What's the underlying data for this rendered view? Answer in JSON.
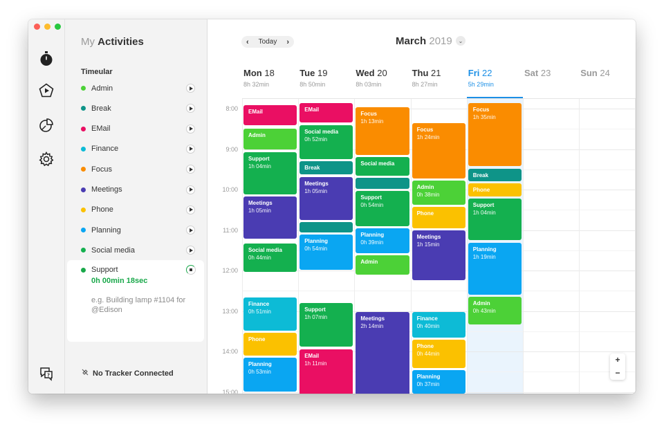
{
  "sidebar": {
    "title_light": "My",
    "title_bold": "Activities",
    "list_header": "Timeular",
    "activities": [
      {
        "label": "Admin",
        "color": "#4cd137"
      },
      {
        "label": "Break",
        "color": "#0e9488"
      },
      {
        "label": "EMail",
        "color": "#ea0f63"
      },
      {
        "label": "Finance",
        "color": "#0dbbd6"
      },
      {
        "label": "Focus",
        "color": "#fa8c00"
      },
      {
        "label": "Meetings",
        "color": "#4a3cb2"
      },
      {
        "label": "Phone",
        "color": "#fbc100"
      },
      {
        "label": "Planning",
        "color": "#0aa6f2"
      },
      {
        "label": "Social media",
        "color": "#14b04f"
      }
    ],
    "active": {
      "label": "Support",
      "time": "0h 00min 18sec",
      "note_placeholder": "e.g. Building lamp #1104 for @Edison"
    },
    "tracker_status": "No Tracker Connected"
  },
  "rail": {
    "icons": [
      "timer-icon",
      "activities-icon",
      "reports-icon",
      "settings-icon",
      "help-icon"
    ]
  },
  "calendar": {
    "nav": {
      "prev": "‹",
      "today": "Today",
      "next": "›"
    },
    "month": "March",
    "year": "2019",
    "days": [
      {
        "name": "Mon",
        "date": "18",
        "total": "8h 32min"
      },
      {
        "name": "Tue",
        "date": "19",
        "total": "8h 50min"
      },
      {
        "name": "Wed",
        "date": "20",
        "total": "8h 03min"
      },
      {
        "name": "Thu",
        "date": "21",
        "total": "8h 27min"
      },
      {
        "name": "Fri",
        "date": "22",
        "total": "5h 29min"
      },
      {
        "name": "Sat",
        "date": "23",
        "total": ""
      },
      {
        "name": "Sun",
        "date": "24",
        "total": ""
      }
    ],
    "hours": [
      "8:00",
      "9:00",
      "10:00",
      "11:00",
      "12:00",
      "13:00",
      "14:00",
      "15:00"
    ],
    "zoom_in": "+",
    "zoom_out": "−",
    "events": [
      {
        "day": 0,
        "start": "07:55",
        "end": "08:27",
        "title": "EMail",
        "dur": "",
        "color": "#ea0f63"
      },
      {
        "day": 0,
        "start": "08:30",
        "end": "09:03",
        "title": "Admin",
        "dur": "",
        "color": "#4cd137"
      },
      {
        "day": 0,
        "start": "09:05",
        "end": "10:09",
        "title": "Support",
        "dur": "1h 04min",
        "color": "#14b04f"
      },
      {
        "day": 0,
        "start": "10:10",
        "end": "11:15",
        "title": "Meetings",
        "dur": "1h 05min",
        "color": "#4a3cb2"
      },
      {
        "day": 0,
        "start": "11:20",
        "end": "12:04",
        "title": "Social media",
        "dur": "0h 44min",
        "color": "#14b04f"
      },
      {
        "day": 0,
        "start": "12:40",
        "end": "13:31",
        "title": "Finance",
        "dur": "0h 51min",
        "color": "#0dbbd6"
      },
      {
        "day": 0,
        "start": "13:32",
        "end": "14:08",
        "title": "Phone",
        "dur": "",
        "color": "#fbc100"
      },
      {
        "day": 0,
        "start": "14:09",
        "end": "15:02",
        "title": "Planning",
        "dur": "0h 53min",
        "color": "#0aa6f2"
      },
      {
        "day": 1,
        "start": "07:52",
        "end": "08:23",
        "title": "EMail",
        "dur": "",
        "color": "#ea0f63"
      },
      {
        "day": 1,
        "start": "08:25",
        "end": "09:17",
        "title": "Social media",
        "dur": "0h 52min",
        "color": "#14b04f"
      },
      {
        "day": 1,
        "start": "09:18",
        "end": "09:40",
        "title": "Break",
        "dur": "",
        "color": "#0e9488"
      },
      {
        "day": 1,
        "start": "09:42",
        "end": "10:47",
        "title": "Meetings",
        "dur": "1h 05min",
        "color": "#4a3cb2"
      },
      {
        "day": 1,
        "start": "10:48",
        "end": "11:06",
        "title": "",
        "dur": "",
        "color": "#0e9488"
      },
      {
        "day": 1,
        "start": "11:07",
        "end": "12:01",
        "title": "Planning",
        "dur": "0h 54min",
        "color": "#0aa6f2"
      },
      {
        "day": 1,
        "start": "12:48",
        "end": "13:55",
        "title": "Support",
        "dur": "1h 07min",
        "color": "#14b04f"
      },
      {
        "day": 1,
        "start": "13:57",
        "end": "15:08",
        "title": "EMail",
        "dur": "1h 11min",
        "color": "#ea0f63"
      },
      {
        "day": 2,
        "start": "07:58",
        "end": "09:11",
        "title": "Focus",
        "dur": "1h 13min",
        "color": "#fa8c00"
      },
      {
        "day": 2,
        "start": "09:12",
        "end": "09:42",
        "title": "Social media",
        "dur": "",
        "color": "#14b04f"
      },
      {
        "day": 2,
        "start": "09:43",
        "end": "10:01",
        "title": "",
        "dur": "",
        "color": "#0e9488"
      },
      {
        "day": 2,
        "start": "10:02",
        "end": "10:56",
        "title": "Support",
        "dur": "0h 54min",
        "color": "#14b04f"
      },
      {
        "day": 2,
        "start": "10:57",
        "end": "11:36",
        "title": "Planning",
        "dur": "0h 39min",
        "color": "#0aa6f2"
      },
      {
        "day": 2,
        "start": "11:37",
        "end": "12:08",
        "title": "Admin",
        "dur": "",
        "color": "#4cd137"
      },
      {
        "day": 2,
        "start": "13:02",
        "end": "15:16",
        "title": "Meetings",
        "dur": "2h 14min",
        "color": "#4a3cb2"
      },
      {
        "day": 3,
        "start": "08:22",
        "end": "09:46",
        "title": "Focus",
        "dur": "1h 24min",
        "color": "#fa8c00"
      },
      {
        "day": 3,
        "start": "09:47",
        "end": "10:25",
        "title": "Admin",
        "dur": "0h 38min",
        "color": "#4cd137"
      },
      {
        "day": 3,
        "start": "10:26",
        "end": "11:00",
        "title": "Phone",
        "dur": "",
        "color": "#fbc100"
      },
      {
        "day": 3,
        "start": "11:01",
        "end": "12:16",
        "title": "Meetings",
        "dur": "1h 15min",
        "color": "#4a3cb2"
      },
      {
        "day": 3,
        "start": "13:02",
        "end": "13:42",
        "title": "Finance",
        "dur": "0h 40min",
        "color": "#0dbbd6"
      },
      {
        "day": 3,
        "start": "13:43",
        "end": "14:27",
        "title": "Phone",
        "dur": "0h 44min",
        "color": "#fbc100"
      },
      {
        "day": 3,
        "start": "14:28",
        "end": "15:05",
        "title": "Planning",
        "dur": "0h 37min",
        "color": "#0aa6f2"
      },
      {
        "day": 4,
        "start": "07:52",
        "end": "09:27",
        "title": "Focus",
        "dur": "1h 35min",
        "color": "#fa8c00"
      },
      {
        "day": 4,
        "start": "09:29",
        "end": "09:50",
        "title": "Break",
        "dur": "",
        "color": "#0e9488"
      },
      {
        "day": 4,
        "start": "09:51",
        "end": "10:12",
        "title": "Phone",
        "dur": "",
        "color": "#fbc100"
      },
      {
        "day": 4,
        "start": "10:13",
        "end": "11:17",
        "title": "Support",
        "dur": "1h 04min",
        "color": "#14b04f"
      },
      {
        "day": 4,
        "start": "11:19",
        "end": "12:38",
        "title": "Planning",
        "dur": "1h 19min",
        "color": "#0aa6f2"
      },
      {
        "day": 4,
        "start": "12:39",
        "end": "13:22",
        "title": "Admin",
        "dur": "0h 43min",
        "color": "#4cd137"
      }
    ]
  }
}
